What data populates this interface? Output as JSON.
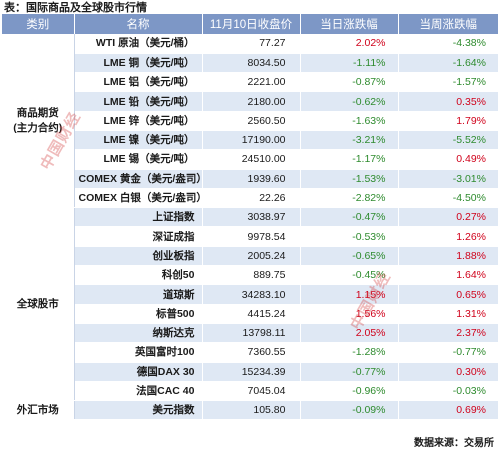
{
  "title": "表：国际商品及全球股市行情",
  "headers": [
    "类别",
    "名称",
    "11月10日收盘价",
    "当日涨跌幅",
    "当周涨跌幅"
  ],
  "groups": [
    {
      "category": "商品期货\n(主力合约)",
      "rows": [
        {
          "name": "WTI 原油（美元/桶）",
          "close": "77.27",
          "day": "2.02%",
          "week": "-4.38%"
        },
        {
          "name": "LME 铜（美元/吨）",
          "close": "8034.50",
          "day": "-1.11%",
          "week": "-1.64%"
        },
        {
          "name": "LME 铝（美元/吨）",
          "close": "2221.00",
          "day": "-0.87%",
          "week": "-1.57%"
        },
        {
          "name": "LME 铅（美元/吨）",
          "close": "2180.00",
          "day": "-0.62%",
          "week": "0.35%"
        },
        {
          "name": "LME 锌（美元/吨）",
          "close": "2560.50",
          "day": "-1.63%",
          "week": "1.79%"
        },
        {
          "name": "LME 镍（美元/吨）",
          "close": "17190.00",
          "day": "-3.21%",
          "week": "-5.52%"
        },
        {
          "name": "LME 锡（美元/吨）",
          "close": "24510.00",
          "day": "-1.17%",
          "week": "0.49%"
        },
        {
          "name": "COMEX 黄金（美元/盎司）",
          "close": "1939.60",
          "day": "-1.53%",
          "week": "-3.01%"
        },
        {
          "name": "COMEX 白银（美元/盎司）",
          "close": "22.26",
          "day": "-2.82%",
          "week": "-4.50%"
        }
      ]
    },
    {
      "category": "全球股市",
      "rows": [
        {
          "name": "上证指数",
          "close": "3038.97",
          "day": "-0.47%",
          "week": "0.27%"
        },
        {
          "name": "深证成指",
          "close": "9978.54",
          "day": "-0.53%",
          "week": "1.26%"
        },
        {
          "name": "创业板指",
          "close": "2005.24",
          "day": "-0.65%",
          "week": "1.88%"
        },
        {
          "name": "科创50",
          "close": "889.75",
          "day": "-0.45%",
          "week": "1.64%"
        },
        {
          "name": "道琼斯",
          "close": "34283.10",
          "day": "1.15%",
          "week": "0.65%"
        },
        {
          "name": "标普500",
          "close": "4415.24",
          "day": "1.56%",
          "week": "1.31%"
        },
        {
          "name": "纳斯达克",
          "close": "13798.11",
          "day": "2.05%",
          "week": "2.37%"
        },
        {
          "name": "英国富时100",
          "close": "7360.55",
          "day": "-1.28%",
          "week": "-0.77%"
        },
        {
          "name": "德国DAX 30",
          "close": "15234.39",
          "day": "-0.77%",
          "week": "0.30%"
        },
        {
          "name": "法国CAC 40",
          "close": "7045.04",
          "day": "-0.96%",
          "week": "-0.03%"
        }
      ]
    },
    {
      "category": "外汇市场",
      "rows": [
        {
          "name": "美元指数",
          "close": "105.80",
          "day": "-0.09%",
          "week": "0.69%"
        }
      ]
    }
  ],
  "source": "数据来源：交易所",
  "watermark": "中国财经",
  "colors": {
    "header_bg": "#7d97c6",
    "stripe": "#dfe8f4",
    "up": "#d0021b",
    "down": "#2e8b2e"
  }
}
